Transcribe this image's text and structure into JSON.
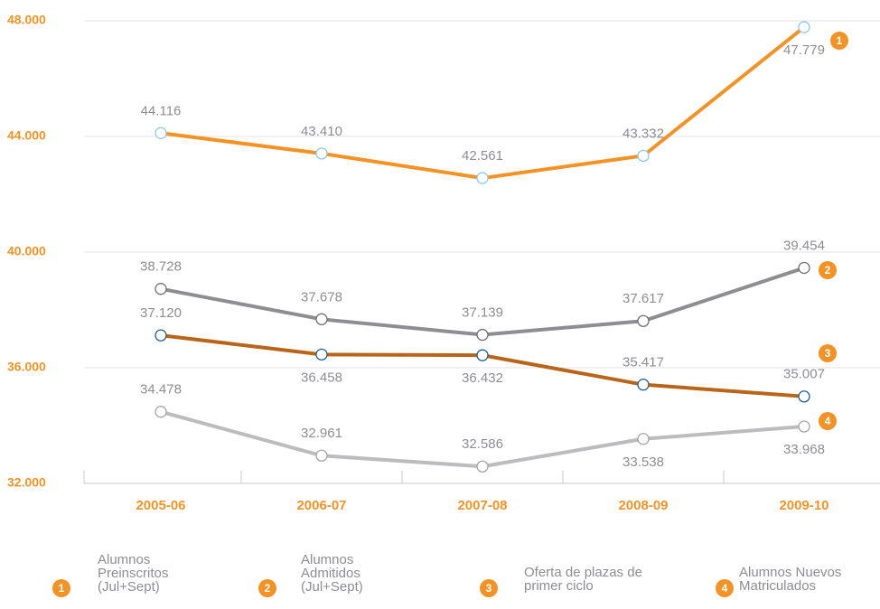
{
  "chart_data": {
    "type": "line",
    "categories": [
      "2005-06",
      "2006-07",
      "2007-08",
      "2008-09",
      "2009-10"
    ],
    "series": [
      {
        "name": "Alumnos Preinscritos (Jul+Sept)",
        "badge": "1",
        "color": "#f39325",
        "marker_color": "#8ecae6",
        "values": [
          44116,
          43410,
          42561,
          43332,
          47779
        ],
        "value_labels": [
          "44.116",
          "43.410",
          "42.561",
          "43.332",
          "47.779"
        ]
      },
      {
        "name": "Alumnos Admitidos (Jul+Sept)",
        "badge": "2",
        "color": "#8e8d91",
        "marker_color": "#6f6e72",
        "values": [
          38728,
          37678,
          37139,
          37617,
          39454
        ],
        "value_labels": [
          "38.728",
          "37.678",
          "37.139",
          "37.617",
          "39.454"
        ]
      },
      {
        "name": "Oferta de plazas de primer ciclo",
        "badge": "3",
        "color": "#b8651b",
        "marker_color": "#1b5e8b",
        "values": [
          37120,
          36458,
          36432,
          35417,
          35007
        ],
        "value_labels": [
          "37.120",
          "36.458",
          "36.432",
          "35.417",
          "35.007"
        ]
      },
      {
        "name": "Alumnos Nuevos Matriculados",
        "badge": "4",
        "color": "#bcbcbf",
        "marker_color": "#a5a5a8",
        "values": [
          34478,
          32961,
          32586,
          33538,
          33968
        ],
        "value_labels": [
          "34.478",
          "32.961",
          "32.586",
          "33.538",
          "33.968"
        ]
      }
    ],
    "ylim": [
      32000,
      48000
    ],
    "yticks": [
      {
        "value": 32000,
        "label": "32.000"
      },
      {
        "value": 36000,
        "label": "36.000"
      },
      {
        "value": 40000,
        "label": "40.000"
      },
      {
        "value": 44000,
        "label": "44.000"
      },
      {
        "value": 48000,
        "label": "48.000"
      }
    ],
    "grid": true,
    "badge_color": "#f39325",
    "tick_label_color": "#f39325"
  }
}
